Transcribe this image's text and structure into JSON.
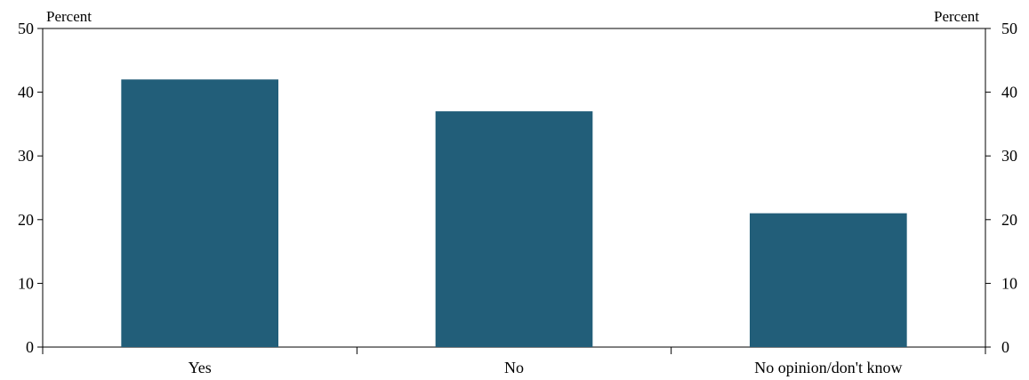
{
  "chart_data": {
    "type": "bar",
    "categories": [
      "Yes",
      "No",
      "No opinion/don't know"
    ],
    "values": [
      42,
      37,
      21
    ],
    "ylim": [
      0,
      50
    ],
    "yticks": [
      0,
      10,
      20,
      30,
      40,
      50
    ],
    "ylabel_left": "Percent",
    "ylabel_right": "Percent",
    "grid": false,
    "bar_color": "#225e79"
  }
}
